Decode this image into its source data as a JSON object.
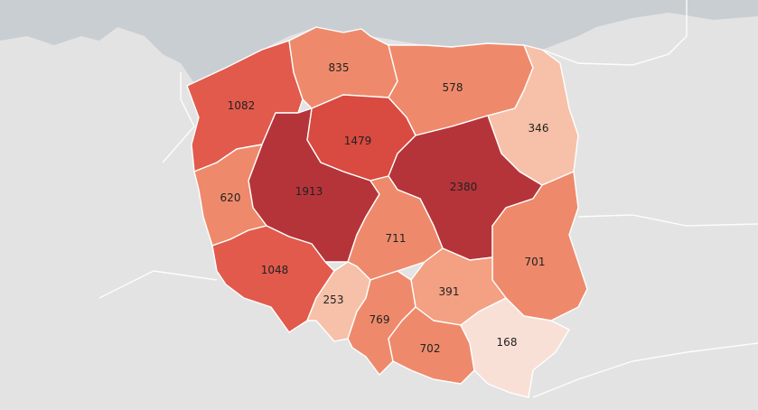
{
  "map": {
    "colors": {
      "sea": "#c9ced3",
      "land": "#e3e3e3",
      "scale": [
        "#f9e0d6",
        "#f6c1a8",
        "#f3a083",
        "#ee8a6b",
        "#e15a4c",
        "#d94a40",
        "#b5343a"
      ]
    },
    "regions": [
      {
        "id": "zachodniopomorskie",
        "value": "1082"
      },
      {
        "id": "pomorskie",
        "value": "835"
      },
      {
        "id": "warminsko-mazurskie",
        "value": "578"
      },
      {
        "id": "podlaskie",
        "value": "346"
      },
      {
        "id": "kujawsko-pomorskie",
        "value": "1479"
      },
      {
        "id": "wielkopolskie",
        "value": "1913"
      },
      {
        "id": "mazowieckie",
        "value": "2380"
      },
      {
        "id": "lubuskie",
        "value": "620"
      },
      {
        "id": "lodzkie",
        "value": "711"
      },
      {
        "id": "lubelskie",
        "value": "701"
      },
      {
        "id": "dolnoslaskie",
        "value": "1048"
      },
      {
        "id": "opolskie",
        "value": "253"
      },
      {
        "id": "swietokrzyskie",
        "value": "391"
      },
      {
        "id": "slaskie",
        "value": "769"
      },
      {
        "id": "malopolskie",
        "value": "702"
      },
      {
        "id": "podkarpackie",
        "value": "168"
      }
    ]
  }
}
